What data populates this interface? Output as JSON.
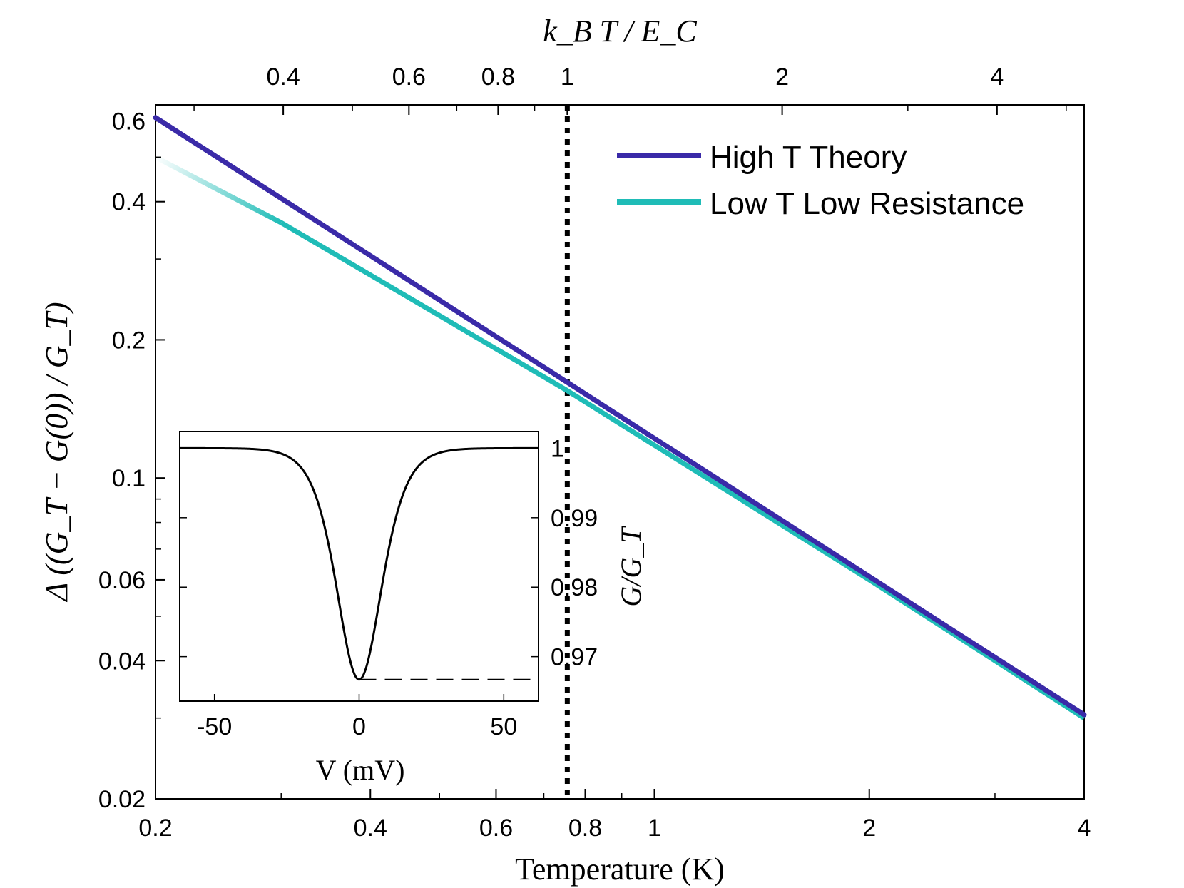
{
  "chart_data": {
    "type": "line",
    "main": {
      "xlabel": "Temperature (K)",
      "ylabel": "Δ ((G_T − G(0)) / G_T)",
      "top_xlabel": "k_B T / E_C",
      "xscale": "log",
      "yscale": "log",
      "xlim": [
        0.2,
        4
      ],
      "ylim": [
        0.02,
        0.65
      ],
      "x_ticks": [
        {
          "value": 0.2,
          "label": "0.2"
        },
        {
          "value": 0.4,
          "label": "0.4"
        },
        {
          "value": 0.6,
          "label": "0.6"
        },
        {
          "value": 0.8,
          "label": "0.8"
        },
        {
          "value": 1,
          "label": "1"
        },
        {
          "value": 2,
          "label": "2"
        },
        {
          "value": 4,
          "label": "4"
        }
      ],
      "y_ticks": [
        {
          "value": 0.02,
          "label": "0.02"
        },
        {
          "value": 0.04,
          "label": "0.04"
        },
        {
          "value": 0.06,
          "label": "0.06"
        },
        {
          "value": 0.1,
          "label": "0.1"
        },
        {
          "value": 0.2,
          "label": "0.2"
        },
        {
          "value": 0.4,
          "label": "0.4"
        },
        {
          "value": 0.6,
          "label": "0.6"
        }
      ],
      "top_axis_scale_T_over_kBT_EC": 0.755,
      "top_ticks": [
        {
          "value": 0.4,
          "label": "0.4"
        },
        {
          "value": 0.6,
          "label": "0.6"
        },
        {
          "value": 0.8,
          "label": "0.8"
        },
        {
          "value": 1,
          "label": "1"
        },
        {
          "value": 2,
          "label": "2"
        },
        {
          "value": 4,
          "label": "4"
        }
      ],
      "vline_T": 0.755,
      "series": [
        {
          "name": "High T Theory",
          "color": "#3a2aa8",
          "x": [
            0.2,
            4
          ],
          "y": [
            0.61,
            0.0305
          ]
        },
        {
          "name": "Low T Low Resistance",
          "color": "#1fbcb7",
          "x": [
            0.2,
            0.3,
            0.755,
            2,
            4
          ],
          "y": [
            0.5,
            0.36,
            0.155,
            0.06,
            0.03
          ],
          "fade_below": 0.3
        }
      ],
      "legend_position": "top-right"
    },
    "inset": {
      "type": "line",
      "xlabel": "V (mV)",
      "ylabel": "G/G_T",
      "xlim": [
        -62,
        62
      ],
      "ylim": [
        0.9636,
        1.0024
      ],
      "x_ticks": [
        {
          "value": -50,
          "label": "-50"
        },
        {
          "value": 0,
          "label": "0"
        },
        {
          "value": 50,
          "label": "50"
        }
      ],
      "y_ticks": [
        {
          "value": 0.97,
          "label": "0.97"
        },
        {
          "value": 0.98,
          "label": "0.98"
        },
        {
          "value": 0.99,
          "label": "0.99"
        },
        {
          "value": 1,
          "label": "1"
        }
      ],
      "curve": {
        "baseline": 1.0,
        "min_value": 0.9667,
        "center": 0,
        "width_mV": 10.5
      },
      "dashed_level": 0.9667
    }
  }
}
